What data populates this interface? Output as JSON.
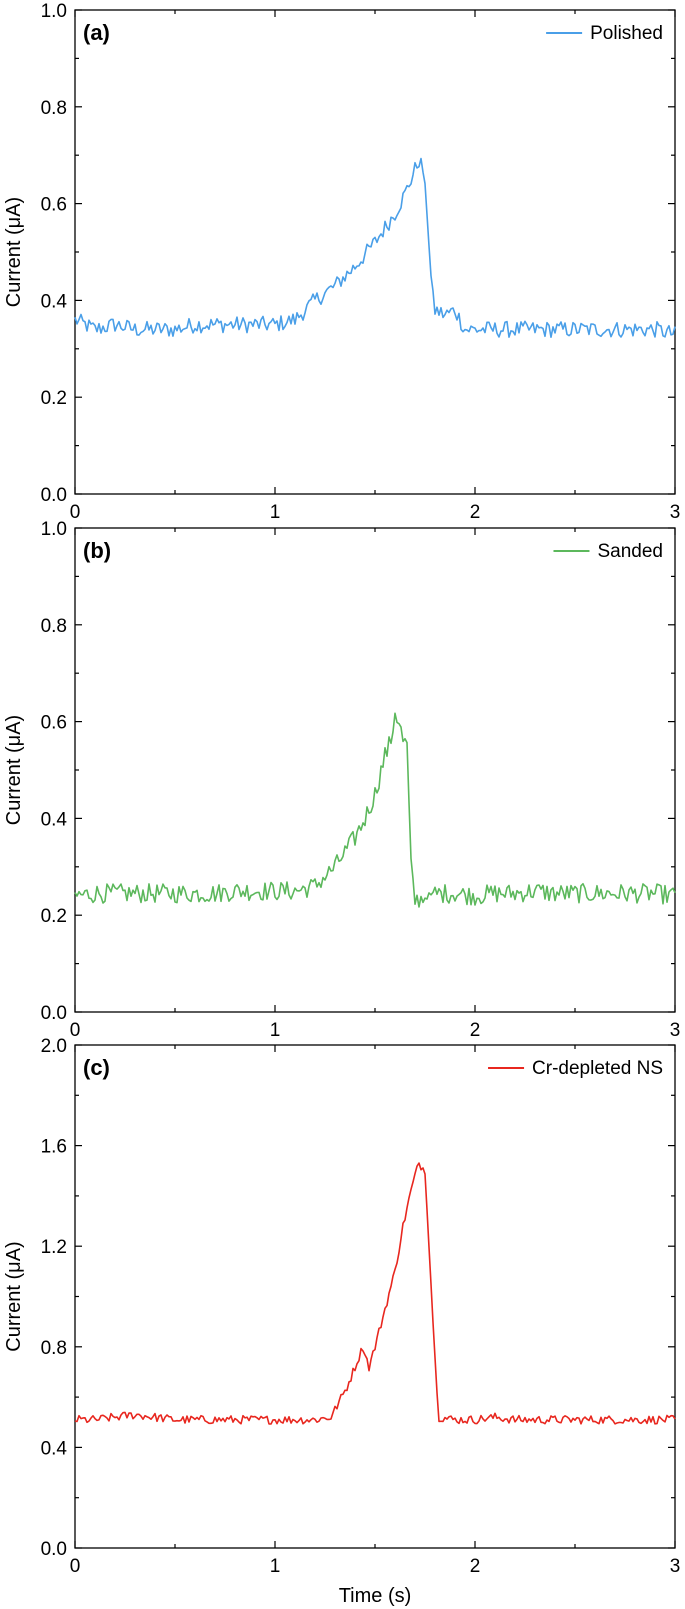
{
  "chart_data": [
    {
      "type": "line",
      "panel_label": "(a)",
      "xlabel": "",
      "ylabel": "Current (μA)",
      "xlim": [
        0,
        3
      ],
      "ylim": [
        0,
        1.0
      ],
      "x_ticks": [
        "0",
        "1",
        "2",
        "3"
      ],
      "y_ticks": [
        "0.0",
        "0.2",
        "0.4",
        "0.6",
        "0.8",
        "1.0"
      ],
      "legend_position": "top-right",
      "series": [
        {
          "name": "Polished",
          "color": "#4a9fe8",
          "points": [
            [
              0,
              0.36
            ],
            [
              0.1,
              0.34
            ],
            [
              0.2,
              0.35
            ],
            [
              0.3,
              0.34
            ],
            [
              0.4,
              0.34
            ],
            [
              0.5,
              0.34
            ],
            [
              0.6,
              0.35
            ],
            [
              0.7,
              0.35
            ],
            [
              0.8,
              0.35
            ],
            [
              0.9,
              0.35
            ],
            [
              1.0,
              0.35
            ],
            [
              1.1,
              0.36
            ],
            [
              1.2,
              0.4
            ],
            [
              1.3,
              0.43
            ],
            [
              1.4,
              0.47
            ],
            [
              1.5,
              0.52
            ],
            [
              1.6,
              0.58
            ],
            [
              1.65,
              0.62
            ],
            [
              1.7,
              0.67
            ],
            [
              1.72,
              0.69
            ],
            [
              1.74,
              0.67
            ],
            [
              1.76,
              0.58
            ],
            [
              1.78,
              0.45
            ],
            [
              1.8,
              0.38
            ],
            [
              1.85,
              0.37
            ],
            [
              1.9,
              0.38
            ],
            [
              1.95,
              0.34
            ],
            [
              2.0,
              0.34
            ],
            [
              2.1,
              0.34
            ],
            [
              2.2,
              0.34
            ],
            [
              2.3,
              0.34
            ],
            [
              2.4,
              0.34
            ],
            [
              2.5,
              0.34
            ],
            [
              2.6,
              0.34
            ],
            [
              2.7,
              0.34
            ],
            [
              2.8,
              0.34
            ],
            [
              2.9,
              0.34
            ],
            [
              3.0,
              0.33
            ]
          ],
          "noise": 0.017
        }
      ]
    },
    {
      "type": "line",
      "panel_label": "(b)",
      "xlabel": "",
      "ylabel": "Current (μA)",
      "xlim": [
        0,
        3
      ],
      "ylim": [
        0,
        1.0
      ],
      "x_ticks": [
        "0",
        "1",
        "2",
        "3"
      ],
      "y_ticks": [
        "0.0",
        "0.2",
        "0.4",
        "0.6",
        "0.8",
        "1.0"
      ],
      "legend_position": "top-right",
      "series": [
        {
          "name": "Sanded",
          "color": "#5cb85c",
          "points": [
            [
              0,
              0.24
            ],
            [
              0.1,
              0.245
            ],
            [
              0.2,
              0.245
            ],
            [
              0.3,
              0.245
            ],
            [
              0.4,
              0.245
            ],
            [
              0.5,
              0.245
            ],
            [
              0.6,
              0.245
            ],
            [
              0.7,
              0.245
            ],
            [
              0.8,
              0.25
            ],
            [
              0.9,
              0.25
            ],
            [
              1.0,
              0.25
            ],
            [
              1.1,
              0.25
            ],
            [
              1.2,
              0.26
            ],
            [
              1.3,
              0.3
            ],
            [
              1.4,
              0.36
            ],
            [
              1.45,
              0.4
            ],
            [
              1.5,
              0.45
            ],
            [
              1.55,
              0.53
            ],
            [
              1.58,
              0.56
            ],
            [
              1.6,
              0.62
            ],
            [
              1.62,
              0.6
            ],
            [
              1.64,
              0.56
            ],
            [
              1.66,
              0.55
            ],
            [
              1.68,
              0.3
            ],
            [
              1.7,
              0.23
            ],
            [
              1.8,
              0.245
            ],
            [
              1.9,
              0.245
            ],
            [
              2.0,
              0.24
            ],
            [
              2.1,
              0.245
            ],
            [
              2.2,
              0.245
            ],
            [
              2.3,
              0.25
            ],
            [
              2.4,
              0.245
            ],
            [
              2.5,
              0.245
            ],
            [
              2.6,
              0.245
            ],
            [
              2.7,
              0.245
            ],
            [
              2.8,
              0.245
            ],
            [
              2.9,
              0.245
            ],
            [
              3.0,
              0.24
            ]
          ],
          "noise": 0.02
        }
      ]
    },
    {
      "type": "line",
      "panel_label": "(c)",
      "xlabel": "Time (s)",
      "ylabel": "Current (μA)",
      "xlim": [
        0,
        3
      ],
      "ylim": [
        0,
        2.0
      ],
      "x_ticks": [
        "0",
        "1",
        "2",
        "3"
      ],
      "y_ticks": [
        "0.0",
        "0.4",
        "0.8",
        "1.2",
        "1.6",
        "2.0"
      ],
      "legend_position": "top-right",
      "series": [
        {
          "name": "Cr-depleted NS",
          "color": "#e8271f",
          "points": [
            [
              0,
              0.51
            ],
            [
              0.1,
              0.51
            ],
            [
              0.2,
              0.52
            ],
            [
              0.3,
              0.53
            ],
            [
              0.4,
              0.52
            ],
            [
              0.5,
              0.51
            ],
            [
              0.6,
              0.51
            ],
            [
              0.7,
              0.51
            ],
            [
              0.8,
              0.51
            ],
            [
              0.9,
              0.51
            ],
            [
              1.0,
              0.51
            ],
            [
              1.1,
              0.51
            ],
            [
              1.2,
              0.51
            ],
            [
              1.28,
              0.52
            ],
            [
              1.32,
              0.58
            ],
            [
              1.36,
              0.64
            ],
            [
              1.4,
              0.72
            ],
            [
              1.44,
              0.8
            ],
            [
              1.47,
              0.72
            ],
            [
              1.5,
              0.8
            ],
            [
              1.55,
              0.95
            ],
            [
              1.6,
              1.1
            ],
            [
              1.64,
              1.28
            ],
            [
              1.68,
              1.42
            ],
            [
              1.7,
              1.48
            ],
            [
              1.72,
              1.53
            ],
            [
              1.75,
              1.5
            ],
            [
              1.77,
              1.2
            ],
            [
              1.8,
              0.75
            ],
            [
              1.82,
              0.52
            ],
            [
              1.9,
              0.51
            ],
            [
              2.0,
              0.51
            ],
            [
              2.1,
              0.52
            ],
            [
              2.2,
              0.51
            ],
            [
              2.3,
              0.51
            ],
            [
              2.4,
              0.51
            ],
            [
              2.5,
              0.51
            ],
            [
              2.6,
              0.51
            ],
            [
              2.7,
              0.51
            ],
            [
              2.8,
              0.51
            ],
            [
              2.9,
              0.51
            ],
            [
              3.0,
              0.51
            ]
          ],
          "noise": 0.017
        }
      ]
    }
  ]
}
